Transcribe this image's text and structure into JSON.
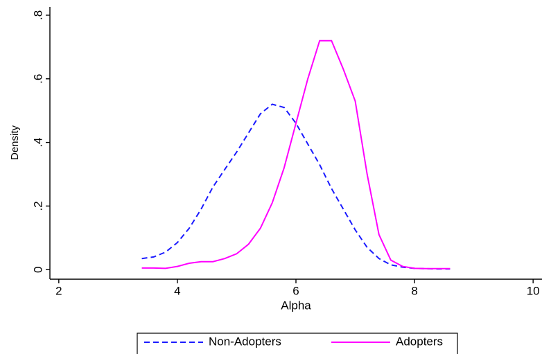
{
  "chart_data": {
    "type": "line",
    "x_label": "Alpha",
    "y_label": "Density",
    "x": [
      3.4,
      3.6,
      3.8,
      4.0,
      4.2,
      4.4,
      4.6,
      4.8,
      5.0,
      5.2,
      5.4,
      5.6,
      5.8,
      6.0,
      6.2,
      6.4,
      6.6,
      6.8,
      7.0,
      7.2,
      7.4,
      7.6,
      7.8,
      8.0,
      8.2,
      8.4,
      8.6
    ],
    "series": [
      {
        "name": "Non-Adopters",
        "color": "#1a1aff",
        "dashed": true,
        "values": [
          0.035,
          0.04,
          0.055,
          0.085,
          0.13,
          0.19,
          0.26,
          0.315,
          0.37,
          0.43,
          0.49,
          0.52,
          0.51,
          0.46,
          0.395,
          0.33,
          0.255,
          0.19,
          0.125,
          0.07,
          0.035,
          0.015,
          0.008,
          0.004,
          0.003,
          0.002,
          0.002
        ]
      },
      {
        "name": "Adopters",
        "color": "#ff00ff",
        "dashed": false,
        "values": [
          0.005,
          0.005,
          0.004,
          0.01,
          0.02,
          0.025,
          0.025,
          0.035,
          0.05,
          0.08,
          0.13,
          0.21,
          0.32,
          0.46,
          0.6,
          0.72,
          0.72,
          0.63,
          0.53,
          0.3,
          0.11,
          0.03,
          0.01,
          0.004,
          0.003,
          0.003,
          0.003
        ]
      }
    ],
    "xlim": [
      1.85,
      10.15
    ],
    "ylim": [
      -0.03,
      0.826
    ],
    "xticks": [
      2,
      4,
      6,
      8,
      10
    ],
    "yticks": [
      0,
      {
        "value": 0.2,
        "label": ".2"
      },
      {
        "value": 0.4,
        "label": ".4"
      },
      {
        "value": 0.6,
        "label": ".6"
      },
      {
        "value": 0.8,
        "label": ".8"
      }
    ],
    "grid": false,
    "legend": "bottom"
  }
}
